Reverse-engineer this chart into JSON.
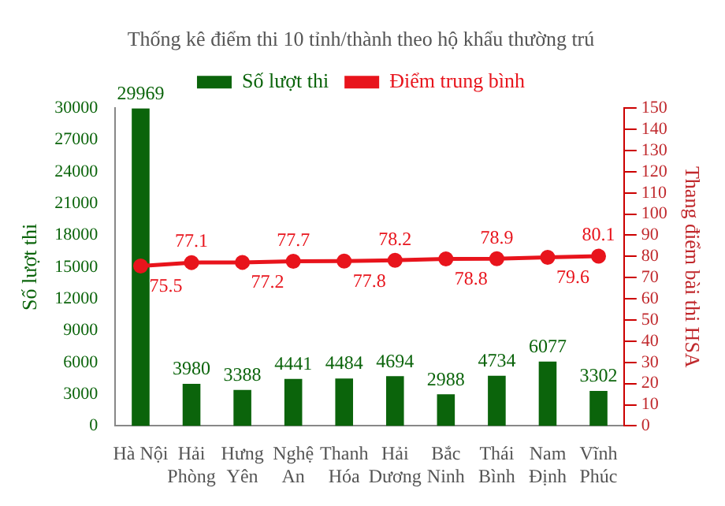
{
  "chart_data": {
    "type": "bar",
    "title": "Thống kê điểm thi 10 tỉnh/thành theo hộ khẩu thường trú",
    "ylabel": "Số lượt thi",
    "y2label": "Thang điểm bài thi HSA",
    "categories": [
      "Hà Nội",
      "Hải\nPhòng",
      "Hưng\nYên",
      "Nghệ\nAn",
      "Thanh\nHóa",
      "Hải\nDương",
      "Bắc\nNinh",
      "Thái\nBình",
      "Nam\nĐịnh",
      "Vĩnh\nPhúc"
    ],
    "series": [
      {
        "name": "Số lượt thi",
        "color": "#0b640b",
        "values": [
          29969,
          3980,
          3388,
          4441,
          4484,
          4694,
          2988,
          4734,
          6077,
          3302
        ]
      },
      {
        "name": "Điểm trung bình",
        "type": "line",
        "axis": "y2",
        "color": "#e8141c",
        "values": [
          75.5,
          77.1,
          77.2,
          77.7,
          77.8,
          78.2,
          78.8,
          78.9,
          79.6,
          80.1
        ]
      }
    ],
    "ylim": [
      0,
      30000
    ],
    "yticks": [
      0,
      3000,
      6000,
      9000,
      12000,
      15000,
      18000,
      21000,
      24000,
      27000,
      30000
    ],
    "y2lim": [
      0,
      150
    ],
    "y2ticks": [
      0,
      10,
      20,
      30,
      40,
      50,
      60,
      70,
      80,
      90,
      100,
      110,
      120,
      130,
      140,
      150
    ],
    "data_labels": true,
    "legend": "top",
    "marker": "circle",
    "grid": false
  }
}
